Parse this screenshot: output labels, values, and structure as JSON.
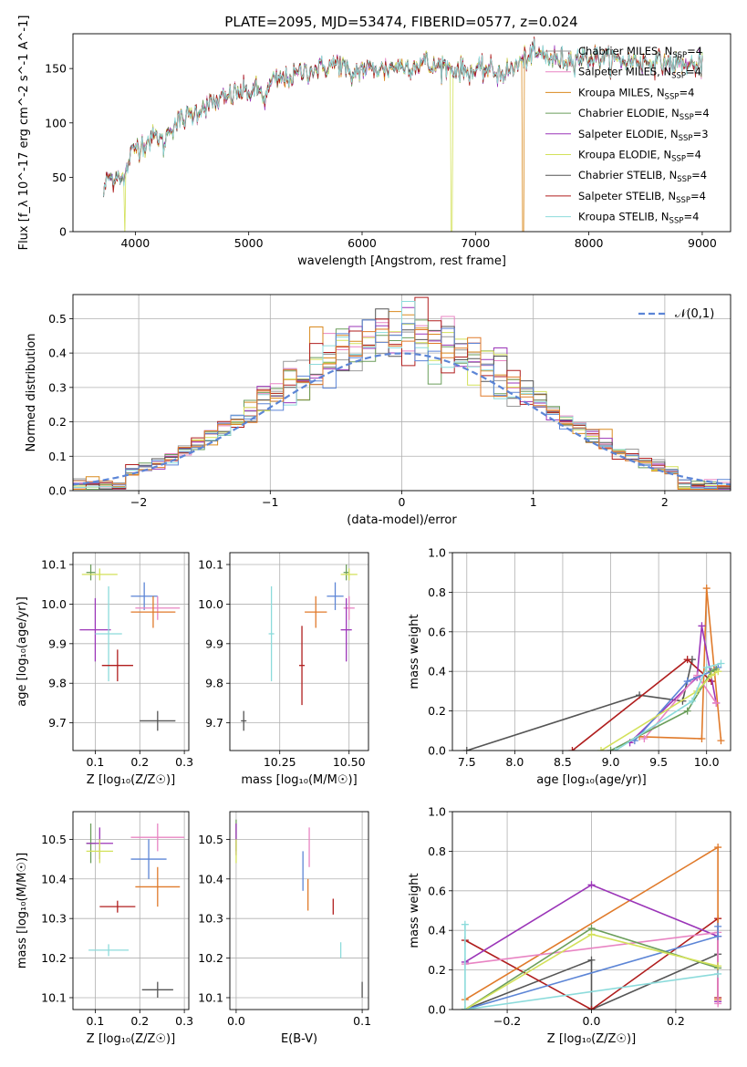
{
  "figure": {
    "title": "PLATE=2095, MJD=53474, FIBERID=0577, z=0.024"
  },
  "colors": {
    "Chabrier MILES": "#999999",
    "Salpeter MILES": "#e884c3",
    "Kroupa MILES": "#d98a1f",
    "Chabrier ELODIE": "#6b9e5b",
    "Salpeter ELODIE": "#9b35b8",
    "Kroupa ELODIE": "#d3e15a",
    "Chabrier STELIB": "#555555",
    "Salpeter STELIB": "#b01e1e",
    "Kroupa STELIB": "#8cdbdb",
    "blue": "#5c85d6",
    "orange": "#e07a2a"
  },
  "chart_data": [
    {
      "id": "spectrum",
      "type": "line",
      "xlabel": "wavelength [Angstrom, rest frame]",
      "ylabel": "Flux [f_λ 10^-17 erg cm^-2 s^-1 A^-1]",
      "xlim": [
        3450,
        9250
      ],
      "ylim": [
        0,
        182
      ],
      "xticks": [
        4000,
        5000,
        6000,
        7000,
        8000,
        9000
      ],
      "yticks": [
        0,
        50,
        100,
        150
      ],
      "legend": "right",
      "series": [
        {
          "name": "Chabrier MILES, N_SSP=4",
          "color": "#999999"
        },
        {
          "name": "Salpeter MILES, N_SSP=4",
          "color": "#e884c3"
        },
        {
          "name": "Kroupa MILES, N_SSP=4",
          "color": "#d98a1f"
        },
        {
          "name": "Chabrier ELODIE, N_SSP=4",
          "color": "#6b9e5b"
        },
        {
          "name": "Salpeter ELODIE, N_SSP=3",
          "color": "#9b35b8"
        },
        {
          "name": "Kroupa ELODIE, N_SSP=4",
          "color": "#d3e15a"
        },
        {
          "name": "Chabrier STELIB, N_SSP=4",
          "color": "#555555"
        },
        {
          "name": "Salpeter STELIB, N_SSP=4",
          "color": "#b01e1e"
        },
        {
          "name": "Kroupa STELIB, N_SSP=4",
          "color": "#8cdbdb"
        }
      ],
      "continuum": [
        [
          3720,
          35
        ],
        [
          3760,
          52
        ],
        [
          3800,
          48
        ],
        [
          3850,
          55
        ],
        [
          3900,
          45
        ],
        [
          3950,
          68
        ],
        [
          4000,
          78
        ],
        [
          4050,
          80
        ],
        [
          4100,
          82
        ],
        [
          4150,
          86
        ],
        [
          4200,
          88
        ],
        [
          4250,
          80
        ],
        [
          4300,
          95
        ],
        [
          4400,
          102
        ],
        [
          4500,
          108
        ],
        [
          4600,
          115
        ],
        [
          4700,
          118
        ],
        [
          4800,
          123
        ],
        [
          4900,
          128
        ],
        [
          5000,
          128
        ],
        [
          5100,
          130
        ],
        [
          5150,
          122
        ],
        [
          5200,
          138
        ],
        [
          5300,
          140
        ],
        [
          5400,
          143
        ],
        [
          5500,
          148
        ],
        [
          5600,
          150
        ],
        [
          5700,
          152
        ],
        [
          5800,
          155
        ],
        [
          5850,
          150
        ],
        [
          5900,
          140
        ],
        [
          5950,
          148
        ],
        [
          6000,
          150
        ],
        [
          6100,
          150
        ],
        [
          6200,
          150
        ],
        [
          6300,
          152
        ],
        [
          6400,
          152
        ],
        [
          6500,
          154
        ],
        [
          6560,
          158
        ],
        [
          6600,
          150
        ],
        [
          6700,
          154
        ],
        [
          6800,
          150
        ],
        [
          6900,
          148
        ],
        [
          7000,
          147
        ],
        [
          7100,
          150
        ],
        [
          7200,
          146
        ],
        [
          7300,
          148
        ],
        [
          7400,
          156
        ],
        [
          7500,
          163
        ],
        [
          7600,
          162
        ],
        [
          7700,
          158
        ],
        [
          7800,
          158
        ],
        [
          7900,
          160
        ],
        [
          8000,
          160
        ],
        [
          8100,
          160
        ],
        [
          8200,
          158
        ],
        [
          8300,
          157
        ],
        [
          8400,
          157
        ],
        [
          8500,
          156
        ],
        [
          8600,
          156
        ],
        [
          8700,
          155
        ],
        [
          8800,
          154
        ],
        [
          8900,
          153
        ],
        [
          9000,
          153
        ]
      ],
      "gaps": [
        {
          "at": 3910,
          "series": "Kroupa ELODIE, N_SSP=4"
        },
        {
          "at": 6790,
          "series": "Kroupa ELODIE, N_SSP=4"
        },
        {
          "at": 7420,
          "series": "Kroupa MILES, N_SSP=4"
        }
      ]
    },
    {
      "id": "residuals",
      "type": "histogram",
      "xlabel": "(data-model)/error",
      "ylabel": "Normed distribution",
      "xlim": [
        -2.5,
        2.5
      ],
      "ylim": [
        0,
        0.57
      ],
      "xticks": [
        -2,
        -1,
        0,
        1,
        2
      ],
      "yticks": [
        0.0,
        0.1,
        0.2,
        0.3,
        0.4,
        0.5
      ],
      "bin_width": 0.1,
      "legend": "top-right",
      "reference": {
        "name": "𝒩(0,1)",
        "mu": 0,
        "sigma": 1,
        "color": "#5c85d6"
      },
      "series_colors": [
        "#999999",
        "#e884c3",
        "#d98a1f",
        "#6b9e5b",
        "#9b35b8",
        "#d3e15a",
        "#555555",
        "#b01e1e",
        "#8cdbdb",
        "#5c85d6",
        "#e07a2a"
      ]
    },
    {
      "id": "age_vs_Z",
      "type": "errorbar",
      "xlabel": "Z [log10(Z/Z☉)]",
      "ylabel": "age [log10(age/yr)]",
      "xlim": [
        0.05,
        0.31
      ],
      "ylim": [
        9.63,
        10.13
      ],
      "xticks": [
        0.1,
        0.2,
        0.3
      ],
      "yticks": [
        9.7,
        9.8,
        9.9,
        10.0,
        10.1
      ],
      "points": [
        {
          "color": "#6b9e5b",
          "x": 0.09,
          "xe": 0.01,
          "y": 10.08,
          "ye": 0.02
        },
        {
          "color": "#d3e15a",
          "x": 0.11,
          "xe": 0.04,
          "y": 10.075,
          "ye": 0.015
        },
        {
          "color": "#5c85d6",
          "x": 0.21,
          "xe": 0.03,
          "y": 10.02,
          "ye": 0.035
        },
        {
          "color": "#e884c3",
          "x": 0.24,
          "xe": 0.05,
          "y": 9.99,
          "ye": 0.03
        },
        {
          "color": "#e07a2a",
          "x": 0.23,
          "xe": 0.05,
          "y": 9.98,
          "ye": 0.04
        },
        {
          "color": "#9b35b8",
          "x": 0.1,
          "xe": 0.035,
          "y": 9.935,
          "ye": 0.08
        },
        {
          "color": "#8cdbdb",
          "x": 0.13,
          "xe": 0.03,
          "y": 9.925,
          "ye": 0.12
        },
        {
          "color": "#b01e1e",
          "x": 0.15,
          "xe": 0.035,
          "y": 9.845,
          "ye": 0.04
        },
        {
          "color": "#555555",
          "x": 0.24,
          "xe": 0.04,
          "y": 9.705,
          "ye": 0.025
        }
      ]
    },
    {
      "id": "age_vs_mass",
      "type": "errorbar",
      "xlabel": "mass [log10(M/M☉)]",
      "ylabel": "",
      "xlim": [
        10.07,
        10.57
      ],
      "ylim": [
        9.63,
        10.13
      ],
      "xticks": [
        10.25,
        10.5
      ],
      "yticks": [
        9.7,
        9.8,
        9.9,
        10.0,
        10.1
      ],
      "points": [
        {
          "color": "#555555",
          "x": 10.12,
          "xe": 0.01,
          "y": 9.705,
          "ye": 0.025
        },
        {
          "color": "#8cdbdb",
          "x": 10.22,
          "xe": 0.01,
          "y": 9.925,
          "ye": 0.12
        },
        {
          "color": "#b01e1e",
          "x": 10.33,
          "xe": 0.01,
          "y": 9.845,
          "ye": 0.1
        },
        {
          "color": "#e07a2a",
          "x": 10.38,
          "xe": 0.04,
          "y": 9.98,
          "ye": 0.04
        },
        {
          "color": "#5c85d6",
          "x": 10.45,
          "xe": 0.03,
          "y": 10.02,
          "ye": 0.035
        },
        {
          "color": "#e884c3",
          "x": 10.5,
          "xe": 0.02,
          "y": 9.99,
          "ye": 0.03
        },
        {
          "color": "#9b35b8",
          "x": 10.49,
          "xe": 0.02,
          "y": 9.935,
          "ye": 0.08
        },
        {
          "color": "#6b9e5b",
          "x": 10.49,
          "xe": 0.01,
          "y": 10.08,
          "ye": 0.02
        },
        {
          "color": "#d3e15a",
          "x": 10.5,
          "xe": 0.03,
          "y": 10.075,
          "ye": 0.015
        }
      ]
    },
    {
      "id": "weights_vs_age",
      "type": "line",
      "xlabel": "age [log10(age/yr)]",
      "ylabel": "mass weight",
      "xlim": [
        7.35,
        10.25
      ],
      "ylim": [
        0,
        1.0
      ],
      "xticks": [
        7.5,
        8.0,
        8.5,
        9.0,
        9.5,
        10.0
      ],
      "yticks": [
        0.0,
        0.2,
        0.4,
        0.6,
        0.8,
        1.0
      ],
      "series": [
        {
          "color": "#555555",
          "points": [
            [
              7.5,
              0.0
            ],
            [
              9.3,
              0.28
            ],
            [
              9.75,
              0.25
            ],
            [
              9.85,
              0.46
            ]
          ]
        },
        {
          "color": "#b01e1e",
          "points": [
            [
              8.6,
              0.0
            ],
            [
              9.8,
              0.46
            ],
            [
              10.05,
              0.35
            ]
          ]
        },
        {
          "color": "#e07a2a",
          "points": [
            [
              9.3,
              0.07
            ],
            [
              9.95,
              0.06
            ],
            [
              10.0,
              0.82
            ],
            [
              10.15,
              0.05
            ]
          ]
        },
        {
          "color": "#9b35b8",
          "points": [
            [
              9.2,
              0.04
            ],
            [
              9.9,
              0.37
            ],
            [
              9.95,
              0.63
            ],
            [
              10.1,
              0.24
            ]
          ]
        },
        {
          "color": "#e884c3",
          "points": [
            [
              9.35,
              0.06
            ],
            [
              9.9,
              0.38
            ],
            [
              10.1,
              0.24
            ]
          ]
        },
        {
          "color": "#5c85d6",
          "points": [
            [
              9.25,
              0.05
            ],
            [
              9.8,
              0.35
            ],
            [
              10.05,
              0.4
            ],
            [
              10.12,
              0.42
            ]
          ]
        },
        {
          "color": "#6b9e5b",
          "points": [
            [
              9.0,
              0.0
            ],
            [
              9.8,
              0.2
            ],
            [
              10.05,
              0.4
            ],
            [
              10.1,
              0.41
            ]
          ]
        },
        {
          "color": "#d3e15a",
          "points": [
            [
              8.9,
              0.0
            ],
            [
              9.9,
              0.3
            ],
            [
              10.05,
              0.38
            ],
            [
              10.12,
              0.4
            ]
          ]
        },
        {
          "color": "#8cdbdb",
          "points": [
            [
              9.05,
              0.0
            ],
            [
              9.85,
              0.25
            ],
            [
              10.0,
              0.42
            ],
            [
              10.15,
              0.44
            ]
          ]
        }
      ]
    },
    {
      "id": "mass_vs_Z",
      "type": "errorbar",
      "xlabel": "Z [log10(Z/Z☉)]",
      "ylabel": "mass [log10(M/M☉)]",
      "xlim": [
        0.05,
        0.31
      ],
      "ylim": [
        10.07,
        10.57
      ],
      "xticks": [
        0.1,
        0.2,
        0.3
      ],
      "yticks": [
        10.1,
        10.2,
        10.3,
        10.4,
        10.5
      ],
      "points": [
        {
          "color": "#6b9e5b",
          "x": 0.09,
          "xe": 0.01,
          "y": 10.49,
          "ye": 0.05
        },
        {
          "color": "#9b35b8",
          "x": 0.11,
          "xe": 0.03,
          "y": 10.49,
          "ye": 0.04
        },
        {
          "color": "#d3e15a",
          "x": 0.11,
          "xe": 0.03,
          "y": 10.47,
          "ye": 0.03
        },
        {
          "color": "#e884c3",
          "x": 0.24,
          "xe": 0.06,
          "y": 10.505,
          "ye": 0.035
        },
        {
          "color": "#5c85d6",
          "x": 0.22,
          "xe": 0.04,
          "y": 10.45,
          "ye": 0.05
        },
        {
          "color": "#e07a2a",
          "x": 0.24,
          "xe": 0.05,
          "y": 10.38,
          "ye": 0.05
        },
        {
          "color": "#b01e1e",
          "x": 0.15,
          "xe": 0.04,
          "y": 10.33,
          "ye": 0.015
        },
        {
          "color": "#8cdbdb",
          "x": 0.13,
          "xe": 0.045,
          "y": 10.22,
          "ye": 0.015
        },
        {
          "color": "#555555",
          "x": 0.24,
          "xe": 0.035,
          "y": 10.12,
          "ye": 0.02
        }
      ]
    },
    {
      "id": "mass_vs_ebv",
      "type": "errorbar",
      "xlabel": "E(B-V)",
      "ylabel": "",
      "xlim": [
        -0.005,
        0.105
      ],
      "ylim": [
        10.07,
        10.57
      ],
      "xticks": [
        0.0,
        0.1
      ],
      "yticks": [
        10.1,
        10.2,
        10.3,
        10.4,
        10.5
      ],
      "points": [
        {
          "color": "#6b9e5b",
          "x": 0.0,
          "xe": 0,
          "y": 10.51,
          "ye": 0.04
        },
        {
          "color": "#9b35b8",
          "x": 0.0,
          "xe": 0,
          "y": 10.5,
          "ye": 0.04
        },
        {
          "color": "#d3e15a",
          "x": 0.0,
          "xe": 0,
          "y": 10.47,
          "ye": 0.03
        },
        {
          "color": "#e884c3",
          "x": 0.058,
          "xe": 0,
          "y": 10.48,
          "ye": 0.05
        },
        {
          "color": "#5c85d6",
          "x": 0.053,
          "xe": 0,
          "y": 10.42,
          "ye": 0.05
        },
        {
          "color": "#e07a2a",
          "x": 0.057,
          "xe": 0,
          "y": 10.36,
          "ye": 0.04
        },
        {
          "color": "#b01e1e",
          "x": 0.077,
          "xe": 0,
          "y": 10.33,
          "ye": 0.02
        },
        {
          "color": "#8cdbdb",
          "x": 0.083,
          "xe": 0,
          "y": 10.22,
          "ye": 0.02
        },
        {
          "color": "#555555",
          "x": 0.1,
          "xe": 0,
          "y": 10.12,
          "ye": 0.02
        }
      ]
    },
    {
      "id": "weights_vs_Z",
      "type": "line",
      "xlabel": "Z [log10(Z/Z☉)]",
      "ylabel": "mass weight",
      "xlim": [
        -0.33,
        0.33
      ],
      "ylim": [
        0,
        1.0
      ],
      "xticks": [
        -0.2,
        0.0,
        0.2
      ],
      "yticks": [
        0.0,
        0.2,
        0.4,
        0.6,
        0.8,
        1.0
      ],
      "series": [
        {
          "color": "#555555",
          "points": [
            [
              -0.3,
              0.0
            ],
            [
              0.0,
              0.25
            ],
            [
              0.0,
              0.0
            ],
            [
              0.3,
              0.28
            ]
          ]
        },
        {
          "color": "#b01e1e",
          "points": [
            [
              -0.3,
              0.35
            ],
            [
              0.0,
              0.0
            ],
            [
              0.3,
              0.46
            ],
            [
              0.3,
              0.06
            ]
          ]
        },
        {
          "color": "#e07a2a",
          "points": [
            [
              -0.3,
              0.05
            ],
            [
              0.3,
              0.82
            ],
            [
              0.3,
              0.05
            ]
          ]
        },
        {
          "color": "#9b35b8",
          "points": [
            [
              -0.3,
              0.24
            ],
            [
              0.0,
              0.63
            ],
            [
              0.3,
              0.37
            ],
            [
              0.3,
              0.04
            ]
          ]
        },
        {
          "color": "#e884c3",
          "points": [
            [
              -0.3,
              0.23
            ],
            [
              0.3,
              0.39
            ],
            [
              0.3,
              0.03
            ]
          ]
        },
        {
          "color": "#5c85d6",
          "points": [
            [
              -0.3,
              0.0
            ],
            [
              0.3,
              0.37
            ],
            [
              0.3,
              0.42
            ]
          ]
        },
        {
          "color": "#6b9e5b",
          "points": [
            [
              -0.3,
              0.0
            ],
            [
              0.0,
              0.41
            ],
            [
              0.3,
              0.21
            ]
          ]
        },
        {
          "color": "#d3e15a",
          "points": [
            [
              -0.3,
              0.0
            ],
            [
              0.0,
              0.38
            ],
            [
              0.3,
              0.22
            ]
          ]
        },
        {
          "color": "#8cdbdb",
          "points": [
            [
              -0.3,
              0.43
            ],
            [
              -0.3,
              0.0
            ],
            [
              0.3,
              0.18
            ]
          ]
        }
      ]
    }
  ]
}
